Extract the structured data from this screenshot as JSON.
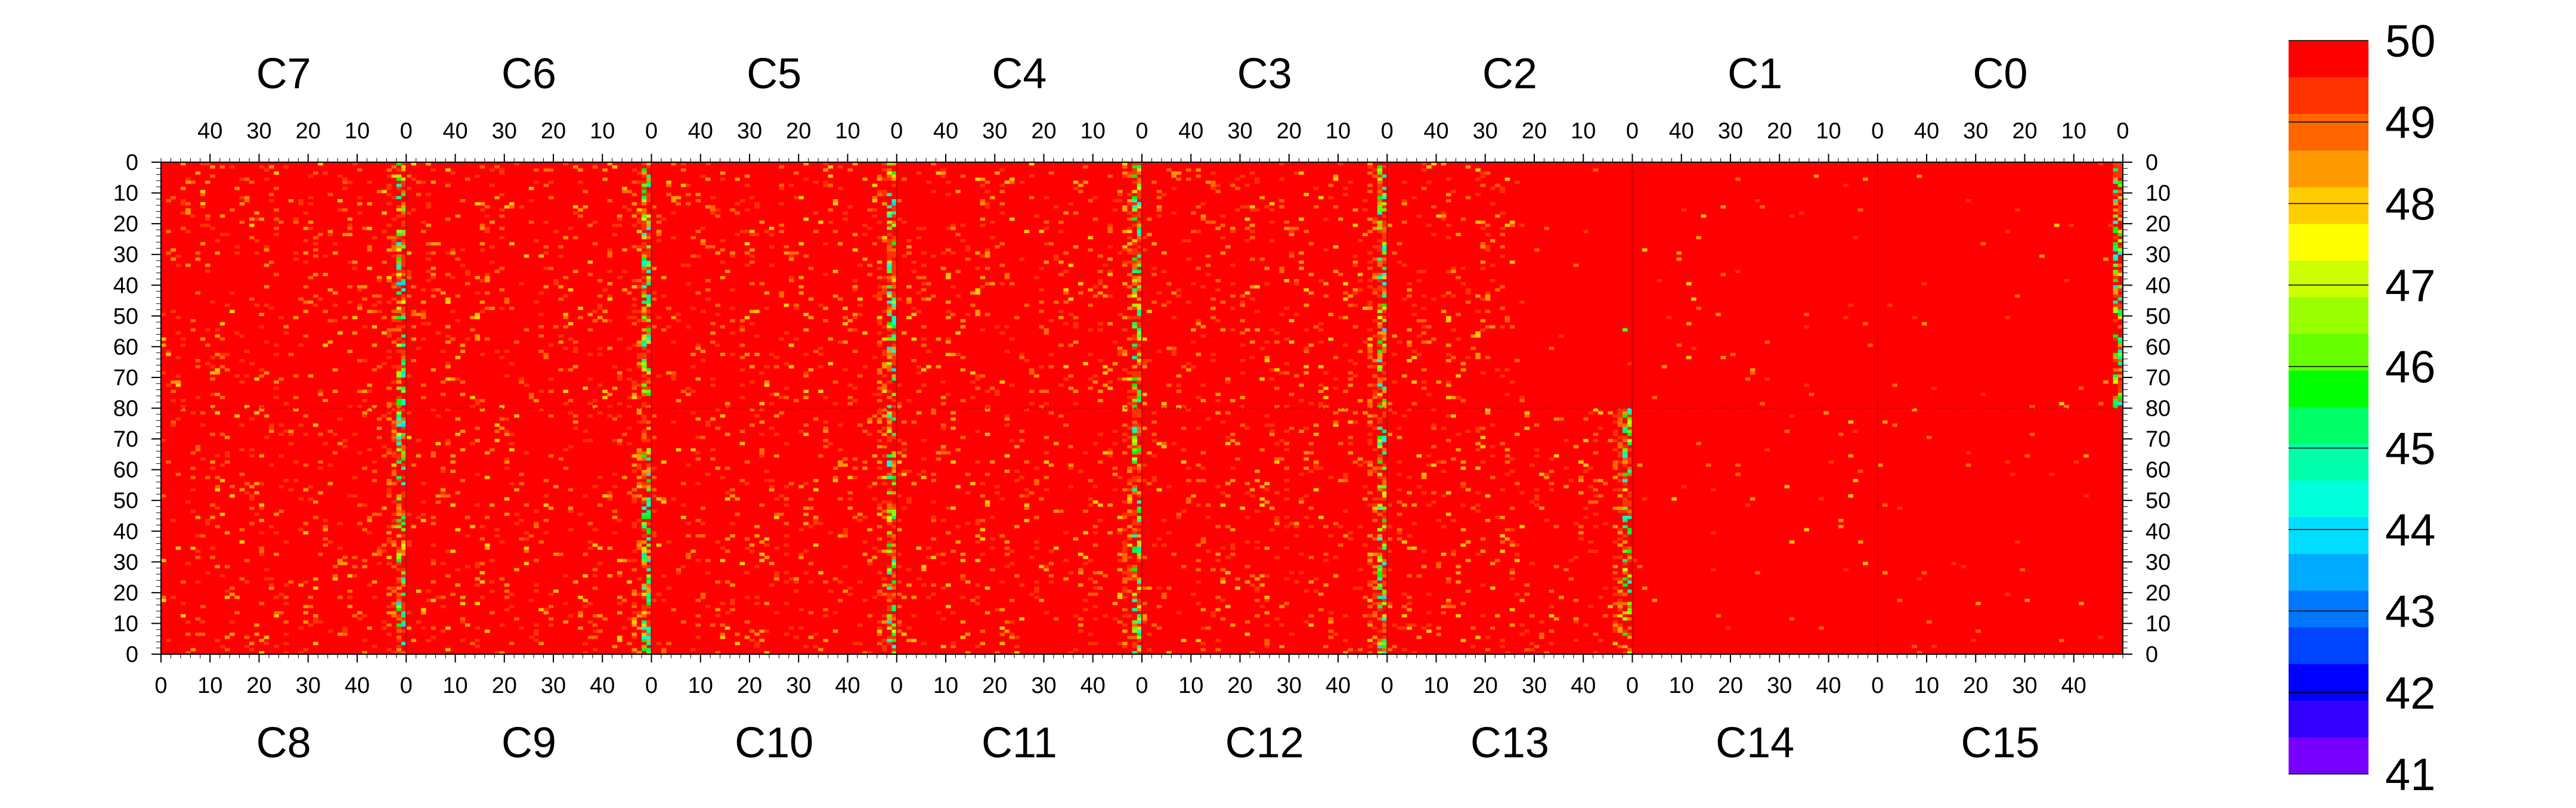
{
  "chart_data": {
    "type": "heatmap",
    "title": "",
    "xlabel": "",
    "ylabel": "",
    "top_modules": [
      "C7",
      "C6",
      "C5",
      "C4",
      "C3",
      "C2",
      "C1",
      "C0"
    ],
    "bottom_modules": [
      "C8",
      "C9",
      "C10",
      "C11",
      "C12",
      "C13",
      "C14",
      "C15"
    ],
    "module_x_range": [
      0,
      50
    ],
    "top_x_ticks": [
      "40",
      "30",
      "20",
      "10",
      "0"
    ],
    "bottom_x_ticks": [
      "0",
      "10",
      "20",
      "30",
      "40"
    ],
    "top_half_y_ticks": [
      "0",
      "10",
      "20",
      "30",
      "40",
      "50",
      "60",
      "70",
      "80"
    ],
    "bottom_half_y_ticks": [
      "70",
      "60",
      "50",
      "40",
      "30",
      "20",
      "10",
      "0"
    ],
    "y_range_per_half": [
      0,
      80
    ],
    "color_scale": {
      "min": 41,
      "max": 50,
      "labels": [
        "50",
        "49",
        "48",
        "47",
        "46",
        "45",
        "44",
        "43",
        "42",
        "41"
      ],
      "palette_top_to_bottom": [
        "#ff0000",
        "#ff3300",
        "#ff6600",
        "#ff9900",
        "#ffcc00",
        "#ffff00",
        "#ccff00",
        "#99ff00",
        "#66ff00",
        "#00ff00",
        "#00ff66",
        "#00ffaa",
        "#00ffdd",
        "#00ddff",
        "#00aaff",
        "#0077ff",
        "#0044ff",
        "#0000ff",
        "#3300ff",
        "#7700ff"
      ]
    },
    "dominant_value": 50,
    "noisy_columns_top_modules": [
      "C7",
      "C6",
      "C5",
      "C4",
      "C3",
      "C2"
    ],
    "noisy_columns_bottom_modules": [
      "C8",
      "C9",
      "C10",
      "C11",
      "C12",
      "C13"
    ],
    "grid": false
  }
}
